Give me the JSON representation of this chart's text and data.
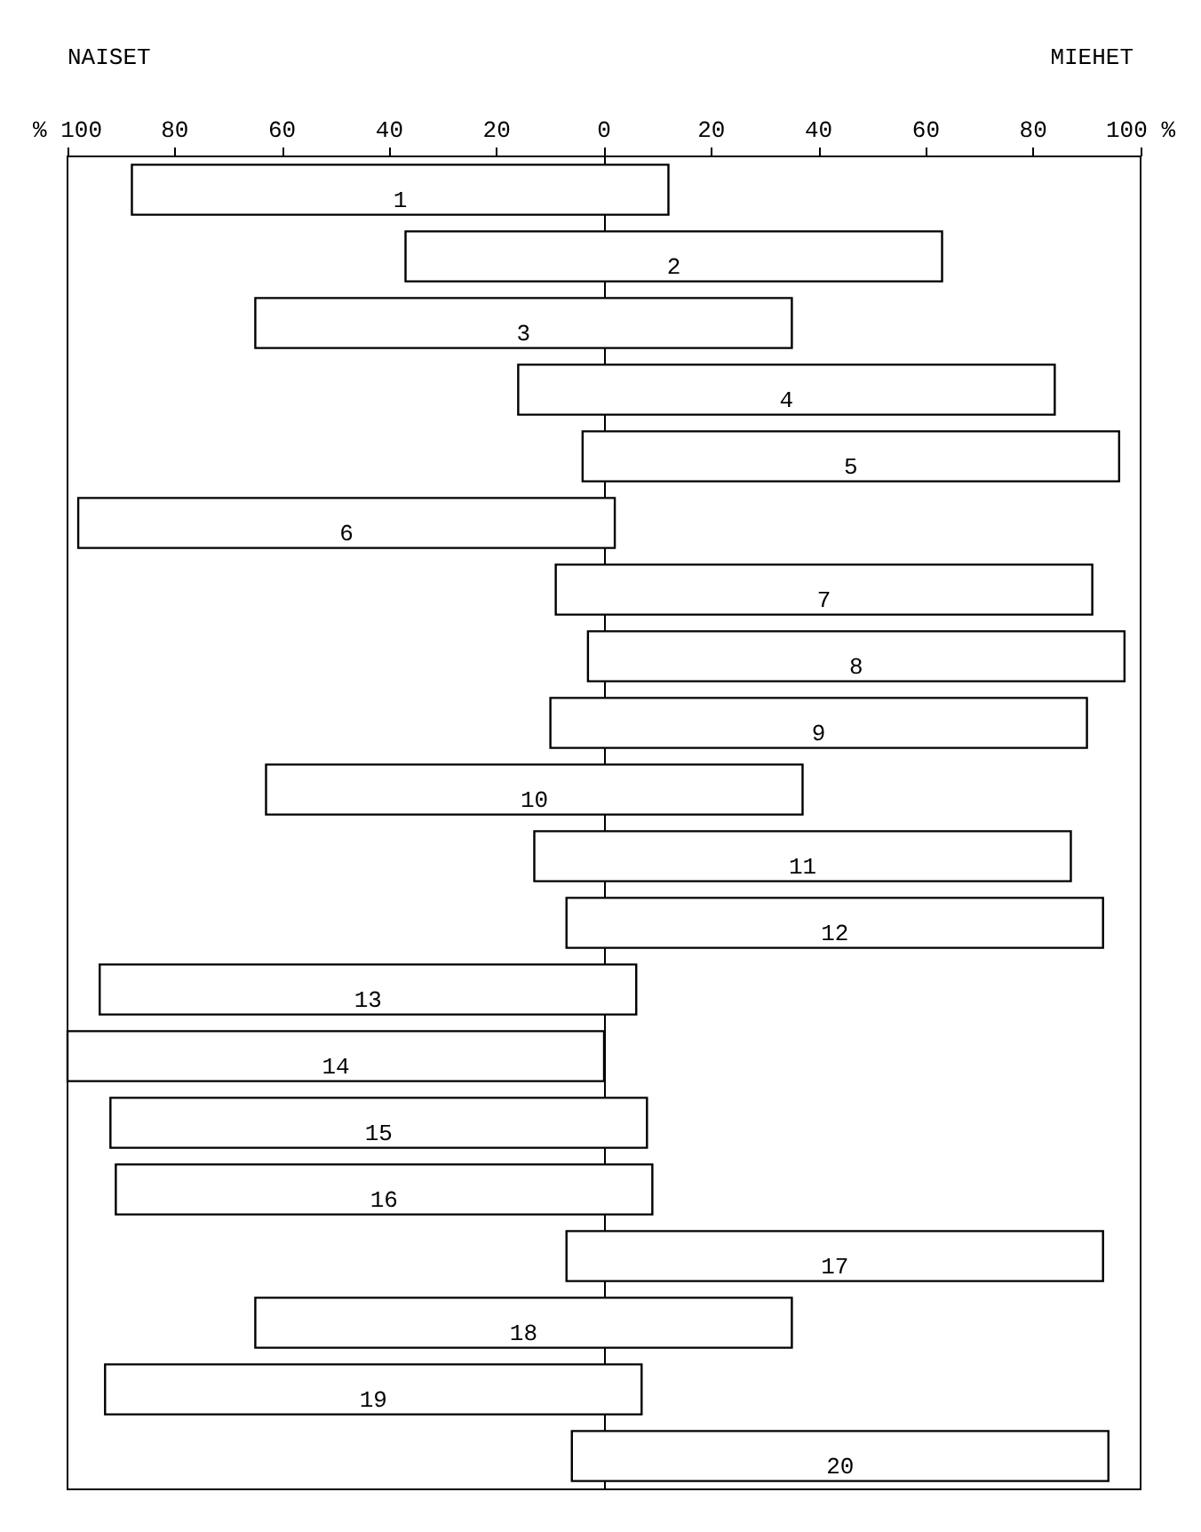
{
  "chart_data": {
    "type": "bar",
    "orientation": "horizontal",
    "annotations": [
      "NAISET",
      "MIEHET"
    ],
    "categories": [
      "1",
      "2",
      "3",
      "4",
      "5",
      "6",
      "7",
      "8",
      "9",
      "10",
      "11",
      "12",
      "13",
      "14",
      "15",
      "16",
      "17",
      "18",
      "19",
      "20"
    ],
    "base": [
      -88,
      -37,
      -65,
      -16,
      -4,
      -98,
      -9,
      -3,
      -10,
      -63,
      -13,
      -7,
      -94,
      -100,
      -92,
      -91,
      -7,
      -65,
      -93,
      -6
    ],
    "values": [
      100,
      100,
      100,
      100,
      100,
      100,
      100,
      100,
      100,
      100,
      100,
      100,
      100,
      100,
      100,
      100,
      100,
      100,
      100,
      100
    ],
    "color": "#ffffff",
    "xlim": [
      -100,
      100
    ],
    "xticks": [
      {
        "value": -100,
        "label": "% 100"
      },
      {
        "value": -80,
        "label": "80"
      },
      {
        "value": -60,
        "label": "60"
      },
      {
        "value": -40,
        "label": "40"
      },
      {
        "value": -20,
        "label": "20"
      },
      0,
      20,
      40,
      60,
      80,
      {
        "value": 100,
        "label": "100 %"
      }
    ],
    "line_style": "solid"
  }
}
